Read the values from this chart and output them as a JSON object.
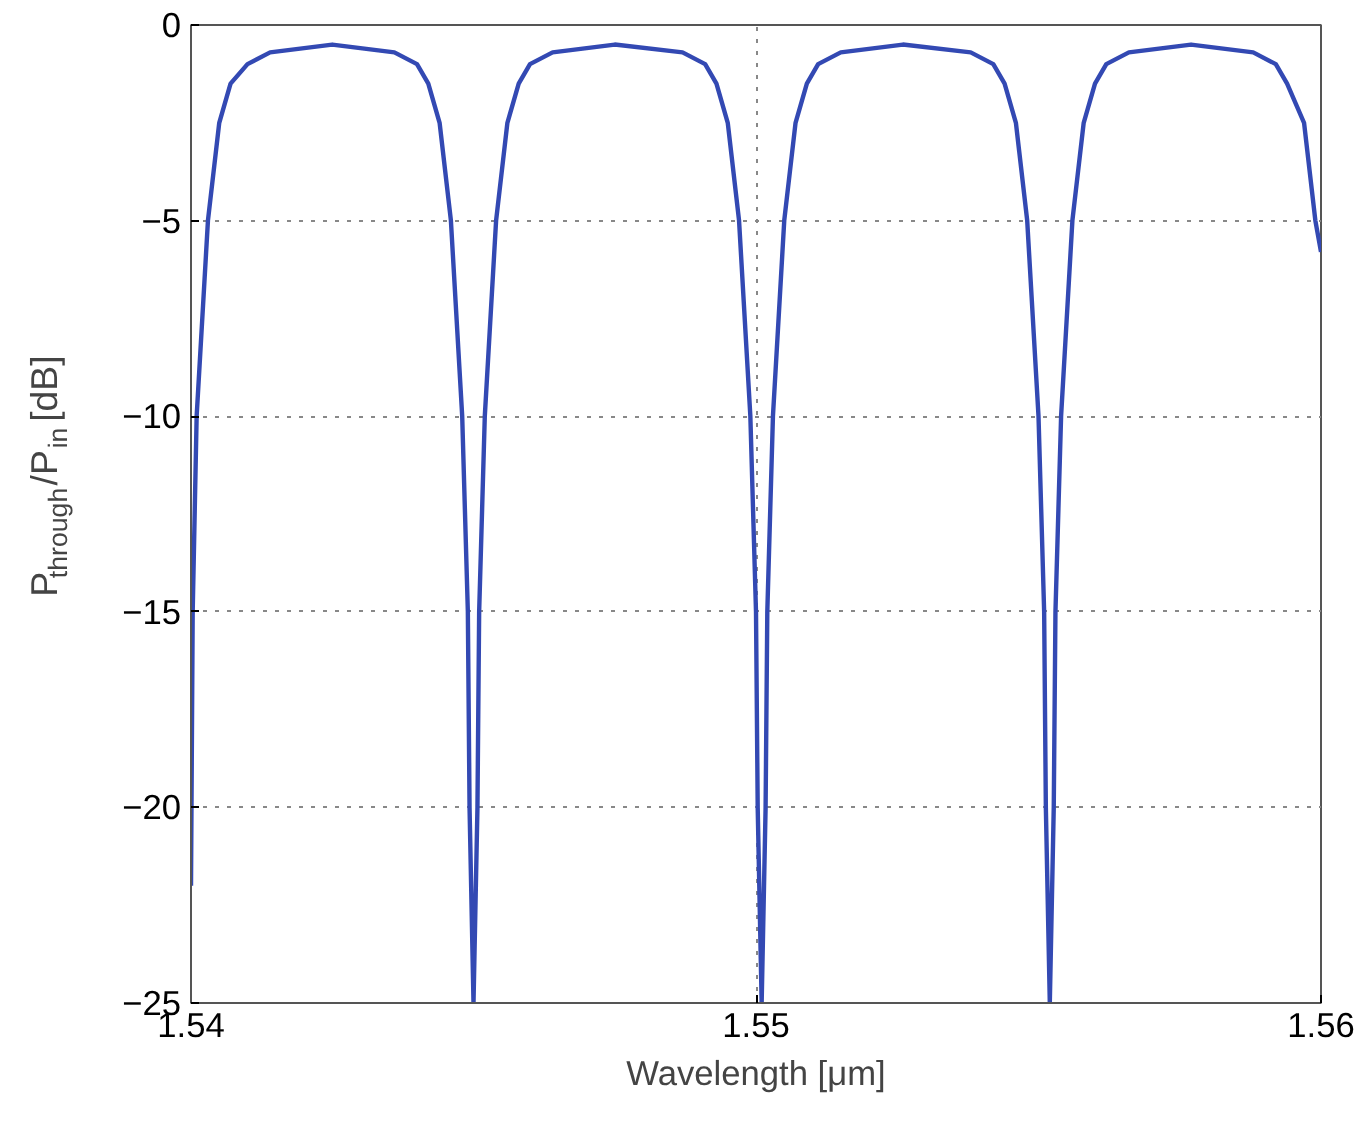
{
  "chart_data": {
    "type": "line",
    "xlabel": "Wavelength [μm]",
    "ylabel": "P$_{through}$/P$_{in}$[dB]",
    "xlim": [
      1.54,
      1.56
    ],
    "ylim": [
      -25,
      0
    ],
    "xticks": [
      1.54,
      1.55,
      1.56
    ],
    "yticks": [
      {
        "value": -25,
        "label": "−25"
      },
      {
        "value": -20,
        "label": "−20"
      },
      {
        "value": -15,
        "label": "−15"
      },
      {
        "value": -10,
        "label": "−10"
      },
      {
        "value": -5,
        "label": "−5"
      },
      0
    ],
    "grid": true,
    "line_style": "solid",
    "marker": "none",
    "series": [
      {
        "color": "#3349b3",
        "x": [
          1.54,
          1.54003,
          1.5401,
          1.5403,
          1.5405,
          1.5407,
          1.541,
          1.5414,
          1.5425,
          1.5436,
          1.544,
          1.5442,
          1.5444,
          1.5446,
          1.5448,
          1.5449,
          1.54493,
          1.545,
          1.54507,
          1.5451,
          1.5452,
          1.5454,
          1.5456,
          1.5458,
          1.546,
          1.5464,
          1.5475,
          1.5487,
          1.5491,
          1.5493,
          1.5495,
          1.5497,
          1.5499,
          1.55,
          1.55003,
          1.5501,
          1.55017,
          1.5502,
          1.5503,
          1.5505,
          1.5507,
          1.5509,
          1.5511,
          1.5515,
          1.5526,
          1.5538,
          1.5542,
          1.5544,
          1.5546,
          1.5548,
          1.555,
          1.5551,
          1.55513,
          1.5552,
          1.55527,
          1.5553,
          1.5554,
          1.5556,
          1.5558,
          1.556,
          1.5562,
          1.5566,
          1.5577,
          1.5588,
          1.5592,
          1.5594,
          1.5597,
          1.5599,
          1.56
        ],
        "values": [
          -22,
          -15,
          -10,
          -5,
          -2.5,
          -1.5,
          -1,
          -0.7,
          -0.5,
          -0.7,
          -1,
          -1.5,
          -2.5,
          -5,
          -10,
          -15,
          -20,
          -25,
          -20,
          -15,
          -10,
          -5,
          -2.5,
          -1.5,
          -1,
          -0.7,
          -0.5,
          -0.7,
          -1,
          -1.5,
          -2.5,
          -5,
          -10,
          -15,
          -20,
          -25,
          -20,
          -15,
          -10,
          -5,
          -2.5,
          -1.5,
          -1,
          -0.7,
          -0.5,
          -0.7,
          -1,
          -1.5,
          -2.5,
          -5,
          -10,
          -15,
          -20,
          -25,
          -20,
          -15,
          -10,
          -5,
          -2.5,
          -1.5,
          -1,
          -0.7,
          -0.5,
          -0.7,
          -1,
          -1.5,
          -2.5,
          -5,
          -5.8
        ]
      }
    ]
  }
}
